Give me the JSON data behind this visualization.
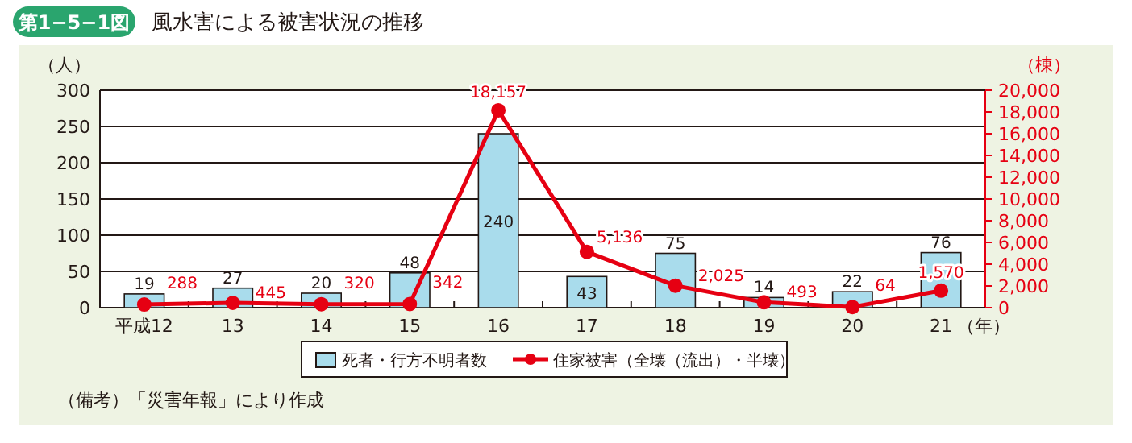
{
  "chart_data": {
    "type": "bar",
    "title": "風水害による被害状況の推移",
    "ylabel": "（人）",
    "y2label": "（棟）",
    "xlabel": "（年）",
    "annotations": [
      "第1−5−1図",
      "（備考）「災害年報」により作成"
    ],
    "categories": [
      "平成12",
      "13",
      "14",
      "15",
      "16",
      "17",
      "18",
      "19",
      "20",
      "21"
    ],
    "series": [
      {
        "name": "死者・行方不明者数",
        "color": "#a9dcec",
        "values": [
          19,
          27,
          20,
          48,
          240,
          43,
          75,
          14,
          22,
          76
        ]
      },
      {
        "name": "住家被害（全壊（流出）・半壊）",
        "type": "line",
        "axis": "y2",
        "color": "#e60012",
        "values": [
          288,
          445,
          320,
          342,
          18157,
          5136,
          2025,
          493,
          64,
          1570
        ],
        "value_labels": [
          "288",
          "445",
          "320",
          "342",
          "18,157",
          "5,136",
          "2,025",
          "493",
          "64",
          "1,570"
        ]
      }
    ],
    "ylim": [
      0,
      300
    ],
    "yticks": [
      0,
      50,
      100,
      150,
      200,
      250,
      300
    ],
    "y2lim": [
      0,
      20000
    ],
    "y2ticks": [
      {
        "value": 0,
        "label": "0"
      },
      {
        "value": 2000,
        "label": "2,000"
      },
      {
        "value": 4000,
        "label": "4,000"
      },
      {
        "value": 6000,
        "label": "6,000"
      },
      {
        "value": 8000,
        "label": "8,000"
      },
      {
        "value": 10000,
        "label": "10,000"
      },
      {
        "value": 12000,
        "label": "12,000"
      },
      {
        "value": 14000,
        "label": "14,000"
      },
      {
        "value": 16000,
        "label": "16,000"
      },
      {
        "value": 18000,
        "label": "18,000"
      },
      {
        "value": 20000,
        "label": "20,000"
      }
    ],
    "grid": "y",
    "legend": "bottom",
    "marker": "circle",
    "data_labels": true
  }
}
